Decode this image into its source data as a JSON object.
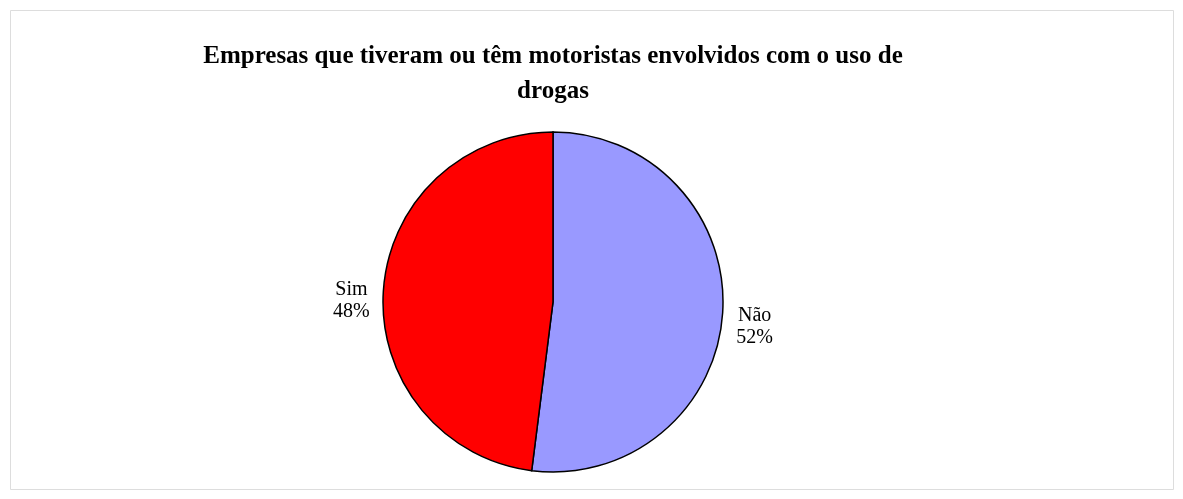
{
  "chart_data": {
    "type": "pie",
    "title": "Empresas que tiveram ou têm motoristas envolvidos com o uso de drogas",
    "categories": [
      "Não",
      "Sim"
    ],
    "values": [
      52,
      48
    ],
    "value_labels": [
      "52%",
      "48%"
    ],
    "colors": [
      "#9999ff",
      "#ff0000"
    ],
    "legend": false
  }
}
